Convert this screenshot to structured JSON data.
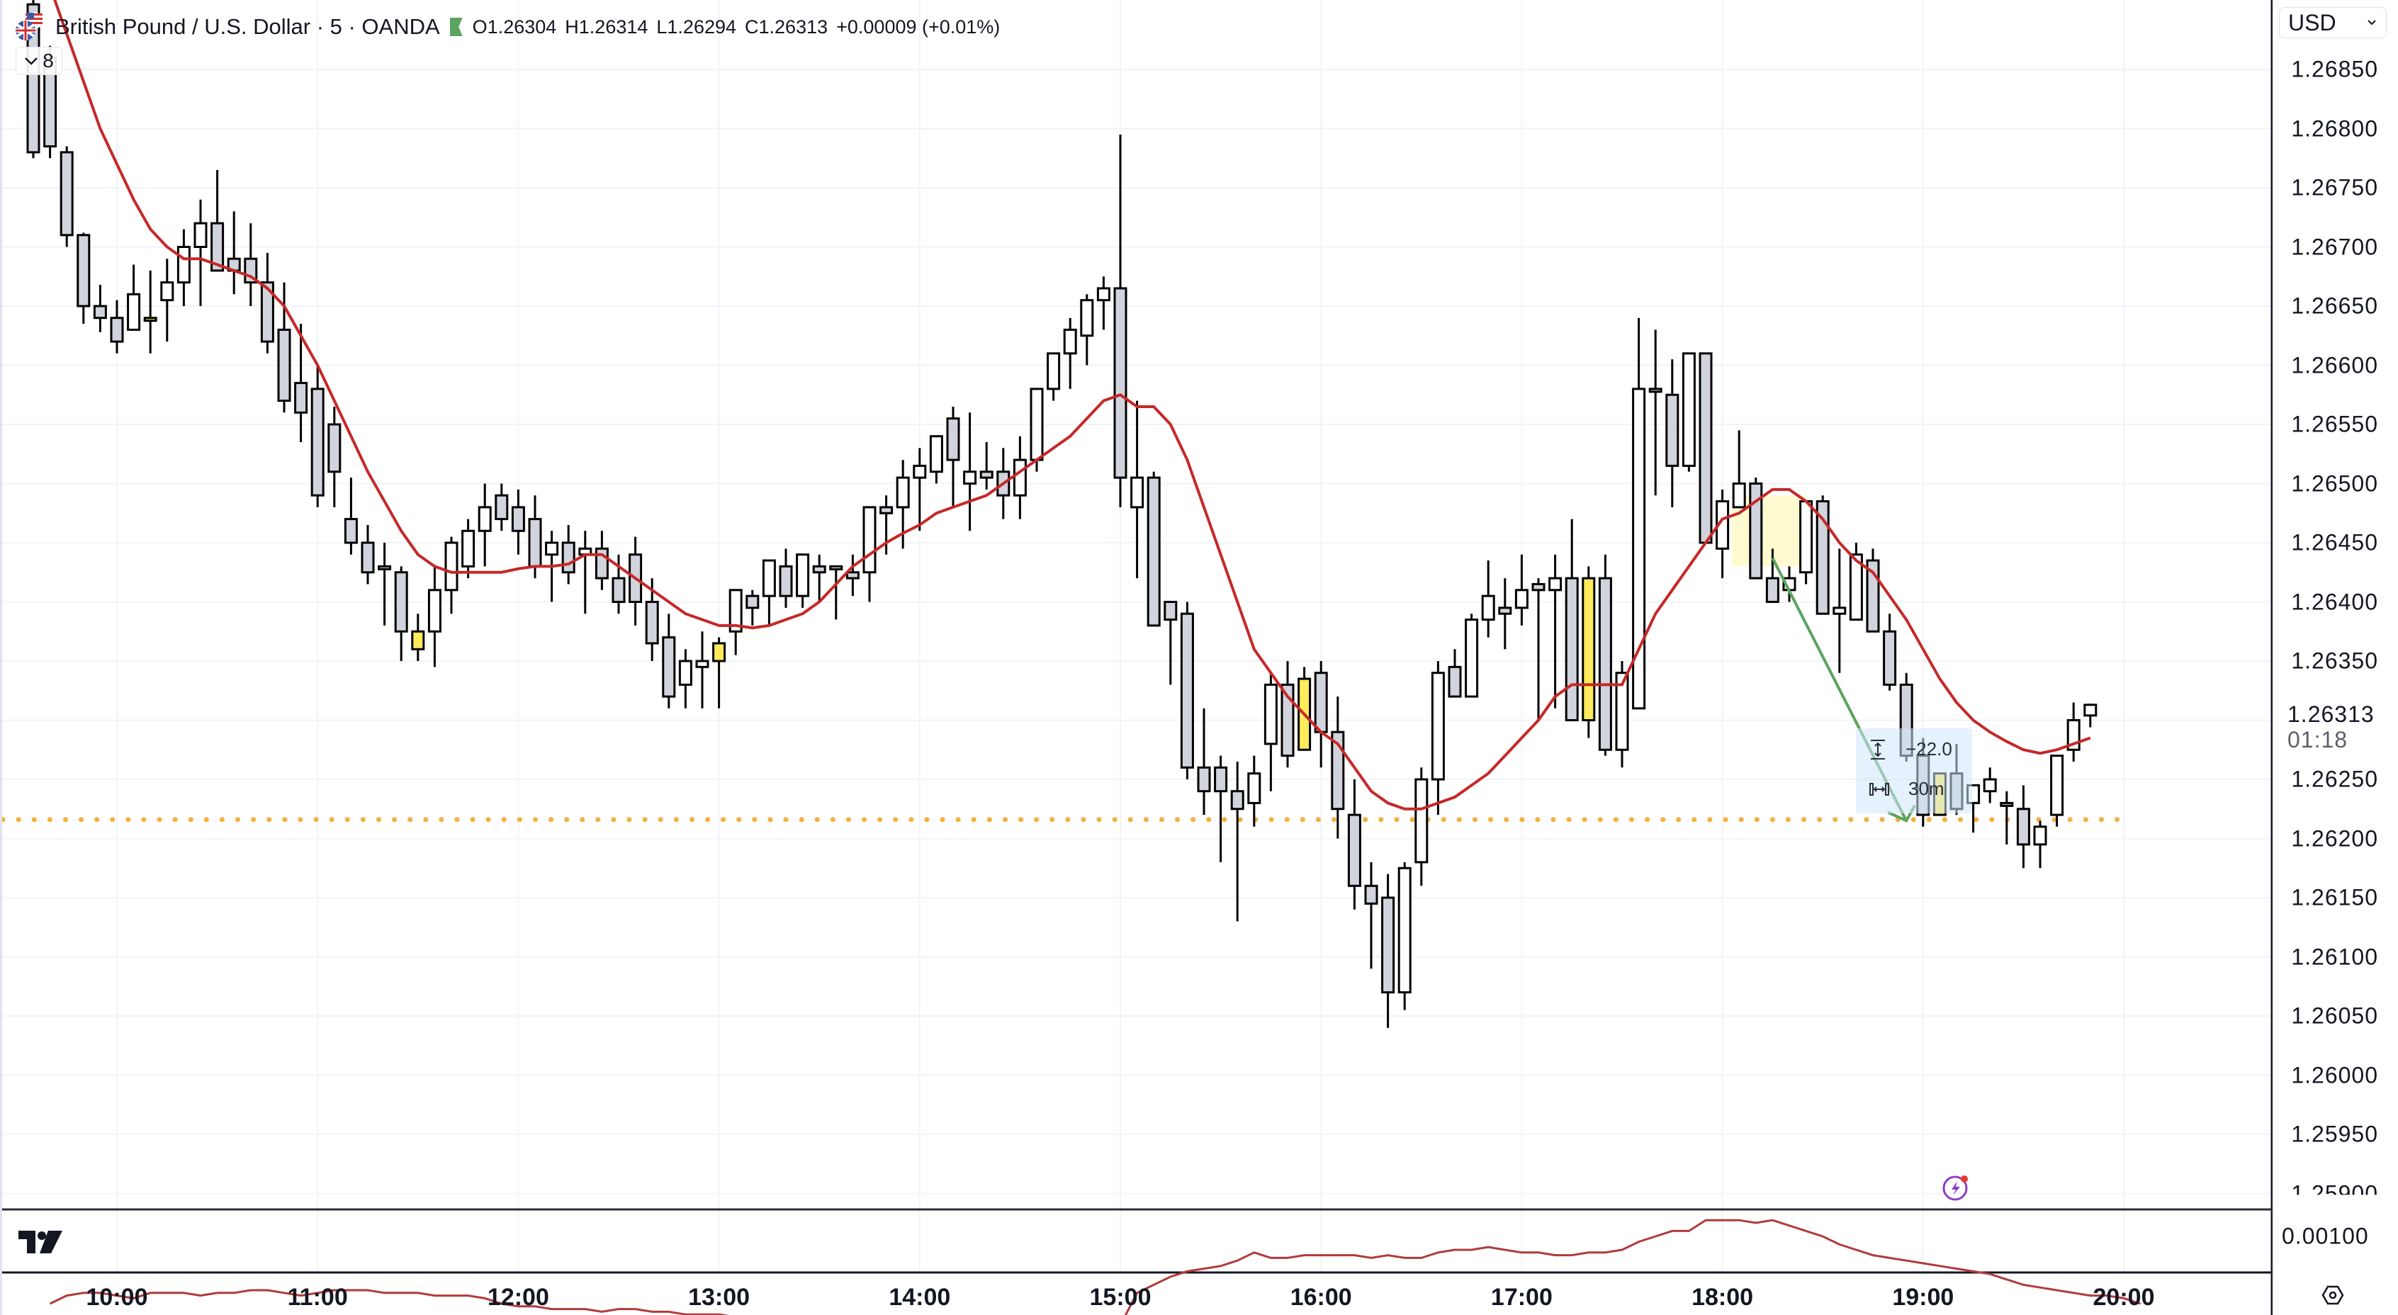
{
  "header": {
    "symbol": "British Pound / U.S. Dollar · 5 · OANDA",
    "ohlc": {
      "open": "O1.26304",
      "high": "H1.26314",
      "low": "L1.26294",
      "close": "C1.26313",
      "change": "+0.00009 (+0.01%)"
    },
    "collapse_count": "8",
    "flag_icon": "gbp-usd-flags-icon",
    "market_status_icon": "market-open-flag-icon"
  },
  "price_axis": {
    "currency": "USD",
    "labels": [
      "1.26850",
      "1.26800",
      "1.26750",
      "1.26700",
      "1.26650",
      "1.26600",
      "1.26550",
      "1.26500",
      "1.26450",
      "1.26400",
      "1.26350",
      "1.26250",
      "1.26200",
      "1.26150",
      "1.26100",
      "1.26050",
      "1.26000",
      "1.25950",
      "1.25900"
    ],
    "last_price": "1.26313",
    "countdown": "01:18"
  },
  "indicator_pane": {
    "label": "0.00100"
  },
  "time_axis": {
    "labels": [
      "10:00",
      "11:00",
      "12:00",
      "13:00",
      "14:00",
      "15:00",
      "16:00",
      "17:00",
      "18:00",
      "19:00",
      "20:00"
    ]
  },
  "measure_tool": {
    "price_change": "−22.0",
    "duration": "30m"
  },
  "colors": {
    "up_body": "#ffffff",
    "down_body": "#d1d4dc",
    "highlight_body": "#ffeb5b",
    "outline": "#000000",
    "ma_line": "#c62828",
    "horizontal_line": "#f5b041",
    "arrow": "#5ba35f",
    "highlight_box": "#fff9c4",
    "measure_bg": "#cfe5fa"
  },
  "chart_data": {
    "type": "candlestick",
    "title": "British Pound / U.S. Dollar · 5 · OANDA",
    "interval": "5m",
    "xlabel": "",
    "ylabel": "USD",
    "ylim": [
      1.2588,
      1.2688
    ],
    "x_ticks": [
      "10:00",
      "11:00",
      "12:00",
      "13:00",
      "14:00",
      "15:00",
      "16:00",
      "17:00",
      "18:00",
      "19:00",
      "20:00"
    ],
    "y_ticks": [
      1.2685,
      1.268,
      1.2675,
      1.267,
      1.2665,
      1.266,
      1.2655,
      1.265,
      1.2645,
      1.264,
      1.2635,
      1.263,
      1.2625,
      1.262,
      1.2615,
      1.261,
      1.2605,
      1.26,
      1.2595,
      1.259
    ],
    "first_bar_offset": -5,
    "candles": [
      [
        1.26905,
        1.2692,
        1.26775,
        1.2678,
        0
      ],
      [
        1.2686,
        1.2687,
        1.26775,
        1.26785,
        0
      ],
      [
        1.2678,
        1.26785,
        1.267,
        1.2671,
        0
      ],
      [
        1.2671,
        1.26712,
        1.26635,
        1.2665,
        0
      ],
      [
        1.2665,
        1.26668,
        1.26628,
        1.2664,
        0
      ],
      [
        1.2664,
        1.26655,
        1.2661,
        1.2662,
        0
      ],
      [
        1.2663,
        1.26685,
        1.2663,
        1.2666,
        1
      ],
      [
        1.2664,
        1.2668,
        1.2661,
        1.2664,
        2
      ],
      [
        1.26655,
        1.2669,
        1.2662,
        1.2667,
        1
      ],
      [
        1.2667,
        1.26715,
        1.2665,
        1.267,
        1
      ],
      [
        1.267,
        1.2674,
        1.2665,
        1.2672,
        1
      ],
      [
        1.2672,
        1.26765,
        1.2668,
        1.2668,
        0
      ],
      [
        1.2668,
        1.2673,
        1.2666,
        1.2669,
        0
      ],
      [
        1.2669,
        1.2672,
        1.2665,
        1.2667,
        0
      ],
      [
        1.2667,
        1.26695,
        1.2661,
        1.2662,
        0
      ],
      [
        1.2663,
        1.2667,
        1.2656,
        1.2657,
        0
      ],
      [
        1.26585,
        1.26635,
        1.26535,
        1.2656,
        0
      ],
      [
        1.2658,
        1.266,
        1.2648,
        1.2649,
        0
      ],
      [
        1.2655,
        1.26565,
        1.2648,
        1.2651,
        0
      ],
      [
        1.2647,
        1.26505,
        1.2644,
        1.2645,
        0
      ],
      [
        1.2645,
        1.26465,
        1.26415,
        1.26425,
        0
      ],
      [
        1.2643,
        1.2645,
        1.2638,
        1.2643,
        0
      ],
      [
        1.26425,
        1.2643,
        1.2635,
        1.26375,
        0
      ],
      [
        1.2636,
        1.2639,
        1.2635,
        1.26375,
        2
      ],
      [
        1.26375,
        1.2643,
        1.26345,
        1.2641,
        1
      ],
      [
        1.2641,
        1.26455,
        1.2639,
        1.2645,
        1
      ],
      [
        1.2643,
        1.2647,
        1.2642,
        1.2646,
        1
      ],
      [
        1.2646,
        1.265,
        1.2643,
        1.2648,
        1
      ],
      [
        1.2649,
        1.265,
        1.2646,
        1.2647,
        0
      ],
      [
        1.2648,
        1.26495,
        1.2644,
        1.2646,
        0
      ],
      [
        1.2647,
        1.2649,
        1.2642,
        1.2643,
        0
      ],
      [
        1.2644,
        1.2646,
        1.264,
        1.2645,
        1
      ],
      [
        1.2645,
        1.26465,
        1.26415,
        1.26425,
        0
      ],
      [
        1.26445,
        1.2646,
        1.2639,
        1.2644,
        1
      ],
      [
        1.26445,
        1.2646,
        1.2641,
        1.2642,
        0
      ],
      [
        1.2642,
        1.2644,
        1.2639,
        1.264,
        0
      ],
      [
        1.2644,
        1.26455,
        1.2638,
        1.264,
        0
      ],
      [
        1.264,
        1.2642,
        1.2635,
        1.26365,
        0
      ],
      [
        1.2637,
        1.2639,
        1.2631,
        1.2632,
        0
      ],
      [
        1.2633,
        1.2636,
        1.2631,
        1.2635,
        1
      ],
      [
        1.26345,
        1.26375,
        1.2631,
        1.2635,
        1
      ],
      [
        1.2635,
        1.2637,
        1.2631,
        1.26365,
        2
      ],
      [
        1.26375,
        1.26395,
        1.26355,
        1.2641,
        1
      ],
      [
        1.26395,
        1.2641,
        1.2638,
        1.26405,
        0
      ],
      [
        1.26405,
        1.2643,
        1.2638,
        1.26435,
        1
      ],
      [
        1.2643,
        1.26445,
        1.26395,
        1.26405,
        0
      ],
      [
        1.26405,
        1.2644,
        1.26395,
        1.2644,
        1
      ],
      [
        1.26425,
        1.2644,
        1.264,
        1.2643,
        0
      ],
      [
        1.2643,
        1.2643,
        1.26385,
        1.2643,
        1
      ],
      [
        1.26425,
        1.2644,
        1.26405,
        1.2642,
        0
      ],
      [
        1.26425,
        1.2647,
        1.264,
        1.2648,
        1
      ],
      [
        1.26475,
        1.2649,
        1.2644,
        1.2648,
        0
      ],
      [
        1.2648,
        1.2652,
        1.26445,
        1.26505,
        1
      ],
      [
        1.26505,
        1.2653,
        1.2646,
        1.26515,
        1
      ],
      [
        1.2651,
        1.2654,
        1.265,
        1.2654,
        1
      ],
      [
        1.26555,
        1.26565,
        1.2648,
        1.2652,
        0
      ],
      [
        1.265,
        1.2656,
        1.2646,
        1.2651,
        1
      ],
      [
        1.26505,
        1.26535,
        1.26495,
        1.2651,
        0
      ],
      [
        1.2651,
        1.2653,
        1.2647,
        1.2649,
        0
      ],
      [
        1.2649,
        1.2654,
        1.2647,
        1.2652,
        1
      ],
      [
        1.2652,
        1.2658,
        1.2651,
        1.2658,
        1
      ],
      [
        1.2658,
        1.2661,
        1.2657,
        1.2661,
        1
      ],
      [
        1.2661,
        1.2664,
        1.2658,
        1.2663,
        1
      ],
      [
        1.26625,
        1.2666,
        1.266,
        1.26655,
        1
      ],
      [
        1.26655,
        1.26675,
        1.2663,
        1.26665,
        1
      ],
      [
        1.26665,
        1.26795,
        1.2648,
        1.26505,
        0
      ],
      [
        1.26505,
        1.2657,
        1.2642,
        1.2648,
        1
      ],
      [
        1.26505,
        1.2651,
        1.26395,
        1.2638,
        0
      ],
      [
        1.264,
        1.2639,
        1.2633,
        1.26385,
        0
      ],
      [
        1.2639,
        1.264,
        1.2625,
        1.2626,
        0
      ],
      [
        1.2626,
        1.2631,
        1.2622,
        1.2624,
        0
      ],
      [
        1.2626,
        1.2627,
        1.2618,
        1.2624,
        0
      ],
      [
        1.2624,
        1.26265,
        1.2613,
        1.26225,
        0
      ],
      [
        1.2623,
        1.2627,
        1.2621,
        1.26255,
        1
      ],
      [
        1.2628,
        1.2634,
        1.2624,
        1.2633,
        1
      ],
      [
        1.2633,
        1.2635,
        1.2626,
        1.2627,
        0
      ],
      [
        1.26275,
        1.26345,
        1.26275,
        1.26335,
        2
      ],
      [
        1.2634,
        1.2635,
        1.2626,
        1.2629,
        0
      ],
      [
        1.2629,
        1.2632,
        1.262,
        1.26225,
        0
      ],
      [
        1.2622,
        1.2625,
        1.2614,
        1.2616,
        0
      ],
      [
        1.2616,
        1.2618,
        1.2609,
        1.26145,
        0
      ],
      [
        1.2615,
        1.2617,
        1.2604,
        1.2607,
        0
      ],
      [
        1.2607,
        1.2618,
        1.26055,
        1.26175,
        1
      ],
      [
        1.2618,
        1.2626,
        1.2616,
        1.2625,
        1
      ],
      [
        1.2625,
        1.2635,
        1.2622,
        1.2634,
        1
      ],
      [
        1.26345,
        1.2636,
        1.2632,
        1.2632,
        0
      ],
      [
        1.2632,
        1.2639,
        1.2632,
        1.26385,
        1
      ],
      [
        1.26385,
        1.26435,
        1.2637,
        1.26405,
        1
      ],
      [
        1.26395,
        1.2642,
        1.2636,
        1.2639,
        0
      ],
      [
        1.26395,
        1.2644,
        1.2638,
        1.2641,
        1
      ],
      [
        1.26415,
        1.2642,
        1.263,
        1.2641,
        0
      ],
      [
        1.2641,
        1.2644,
        1.2631,
        1.2642,
        1
      ],
      [
        1.2642,
        1.2647,
        1.263,
        1.263,
        0
      ],
      [
        1.2642,
        1.2643,
        1.26285,
        1.263,
        2
      ],
      [
        1.2642,
        1.2644,
        1.2627,
        1.26275,
        0
      ],
      [
        1.2634,
        1.2635,
        1.2626,
        1.26275,
        1
      ],
      [
        1.2631,
        1.2664,
        1.2631,
        1.2658,
        1
      ],
      [
        1.2658,
        1.2663,
        1.2649,
        1.26578,
        0
      ],
      [
        1.26575,
        1.26605,
        1.2648,
        1.26515,
        0
      ],
      [
        1.26515,
        1.2661,
        1.2651,
        1.2661,
        1
      ],
      [
        1.2661,
        1.26605,
        1.2645,
        1.2645,
        0
      ],
      [
        1.26445,
        1.26495,
        1.2642,
        1.26485,
        1
      ],
      [
        1.2648,
        1.26545,
        1.2648,
        1.265,
        1
      ],
      [
        1.265,
        1.26505,
        1.2642,
        1.2642,
        0
      ],
      [
        1.2642,
        1.26445,
        1.264,
        1.264,
        0
      ],
      [
        1.2641,
        1.2643,
        1.264,
        1.2642,
        1
      ],
      [
        1.26425,
        1.26475,
        1.26415,
        1.26485,
        1
      ],
      [
        1.26485,
        1.2649,
        1.2639,
        1.2639,
        0
      ],
      [
        1.2639,
        1.26445,
        1.2634,
        1.26395,
        1
      ],
      [
        1.26385,
        1.2645,
        1.26385,
        1.2644,
        1
      ],
      [
        1.26435,
        1.26445,
        1.26375,
        1.26375,
        0
      ],
      [
        1.26375,
        1.2639,
        1.26325,
        1.2633,
        0
      ],
      [
        1.2633,
        1.2634,
        1.26265,
        1.2627,
        0
      ],
      [
        1.2627,
        1.26285,
        1.2621,
        1.2622,
        0
      ],
      [
        1.26255,
        1.26255,
        1.2622,
        1.2622,
        2
      ],
      [
        1.26255,
        1.2628,
        1.2622,
        1.26225,
        0
      ],
      [
        1.2623,
        1.26245,
        1.26205,
        1.26245,
        1
      ],
      [
        1.2625,
        1.2626,
        1.2623,
        1.2624,
        1
      ],
      [
        1.2623,
        1.2624,
        1.26195,
        1.2623,
        0
      ],
      [
        1.26225,
        1.26245,
        1.26175,
        1.26195,
        0
      ],
      [
        1.26195,
        1.26215,
        1.26175,
        1.2621,
        1
      ],
      [
        1.2622,
        1.2627,
        1.2621,
        1.2627,
        1
      ],
      [
        1.26275,
        1.26315,
        1.26265,
        1.263,
        1
      ],
      [
        1.26304,
        1.26314,
        1.26294,
        1.26313,
        1
      ]
    ],
    "candle_legend": "[open, high, low, close, style] style: 0=down(gray),1=up(white),2=highlighted(yellow)",
    "series": [
      {
        "name": "Moving average",
        "color": "#c62828",
        "values": [
          1.2692,
          1.2688,
          1.2684,
          1.268,
          1.2677,
          1.2674,
          1.26715,
          1.267,
          1.2669,
          1.2669,
          1.26685,
          1.2668,
          1.26675,
          1.26665,
          1.2665,
          1.26625,
          1.266,
          1.2657,
          1.2654,
          1.2651,
          1.26485,
          1.2646,
          1.2644,
          1.2643,
          1.26425,
          1.26425,
          1.26425,
          1.26425,
          1.26428,
          1.2643,
          1.2643,
          1.26432,
          1.2644,
          1.2644,
          1.2643,
          1.2642,
          1.2641,
          1.264,
          1.2639,
          1.26385,
          1.2638,
          1.2638,
          1.26378,
          1.2638,
          1.26385,
          1.2639,
          1.264,
          1.26415,
          1.2643,
          1.2644,
          1.2645,
          1.26458,
          1.26465,
          1.26475,
          1.2648,
          1.26485,
          1.2649,
          1.265,
          1.2651,
          1.2652,
          1.2653,
          1.2654,
          1.26555,
          1.2657,
          1.26575,
          1.26565,
          1.26565,
          1.2655,
          1.2652,
          1.2648,
          1.2644,
          1.264,
          1.2636,
          1.2634,
          1.2632,
          1.26305,
          1.2629,
          1.2628,
          1.2626,
          1.2624,
          1.2623,
          1.26225,
          1.26225,
          1.2623,
          1.26235,
          1.26245,
          1.26255,
          1.2627,
          1.26285,
          1.263,
          1.2632,
          1.2633,
          1.2633,
          1.2633,
          1.2633,
          1.2636,
          1.2639,
          1.2641,
          1.2643,
          1.2645,
          1.2647,
          1.26475,
          1.26485,
          1.26495,
          1.26495,
          1.26485,
          1.2647,
          1.2645,
          1.26435,
          1.26425,
          1.26405,
          1.26385,
          1.2636,
          1.26335,
          1.26315,
          1.263,
          1.2629,
          1.26282,
          1.26275,
          1.26272,
          1.26275,
          1.2628,
          1.26285
        ]
      }
    ],
    "horizontal_line": {
      "price": 1.26216,
      "style": "dotted",
      "color": "#f5b041"
    },
    "annotations": [
      {
        "type": "highlight_box",
        "from_bar": 102,
        "to_bar": 106,
        "price_top": 1.2649,
        "price_bottom": 1.2643
      },
      {
        "type": "arrow",
        "from_bar": 104,
        "from_price": 1.26437,
        "to_bar": 112,
        "to_price": 1.26215,
        "color": "#5ba35f"
      },
      {
        "type": "measure",
        "price_change": "−22.0",
        "duration": "30m"
      }
    ],
    "indicator_pane": {
      "label": "0.00100",
      "values": [
        0.00075,
        0.00078,
        0.00079,
        0.00079,
        0.00078,
        0.00077,
        0.00079,
        0.00079,
        0.00079,
        0.00078,
        0.00079,
        0.00079,
        0.0008,
        0.0008,
        0.00079,
        0.00078,
        0.00079,
        0.0008,
        0.0008,
        0.0008,
        0.00079,
        0.00079,
        0.00079,
        0.00078,
        0.00078,
        0.00078,
        0.00077,
        0.00075,
        0.00074,
        0.00074,
        0.00073,
        0.00073,
        0.00073,
        0.00072,
        0.00073,
        0.00073,
        0.00072,
        0.00072,
        0.00071,
        0.00071,
        0.00071,
        0.0007,
        0.0007,
        0.00069,
        0.00068,
        0.00067,
        0.00066,
        0.00067,
        0.00067,
        0.00066,
        0.00066,
        0.00066,
        0.00066,
        0.00067,
        0.00066,
        0.00065,
        0.00066,
        0.00067,
        0.00067,
        0.00067,
        0.00067,
        0.00067,
        0.00067,
        0.00067,
        0.00067,
        0.00079,
        0.00082,
        0.00085,
        0.00087,
        0.00088,
        0.00089,
        0.00091,
        0.00094,
        0.00092,
        0.00092,
        0.00093,
        0.00093,
        0.00093,
        0.00093,
        0.00092,
        0.00093,
        0.00092,
        0.00092,
        0.00094,
        0.00095,
        0.00095,
        0.00096,
        0.00095,
        0.00094,
        0.00094,
        0.00093,
        0.00093,
        0.00094,
        0.00094,
        0.00095,
        0.00098,
        0.001,
        0.00102,
        0.00102,
        0.00106,
        0.00106,
        0.00106,
        0.00105,
        0.00106,
        0.00104,
        0.00102,
        0.001,
        0.00097,
        0.00095,
        0.00093,
        0.00092,
        0.00091,
        0.0009,
        0.00089,
        0.00088,
        0.00087,
        0.00086,
        0.00084,
        0.00082,
        0.00081,
        0.0008,
        0.00079,
        0.00078,
        0.00078,
        0.00077,
        0.00075
      ]
    }
  }
}
